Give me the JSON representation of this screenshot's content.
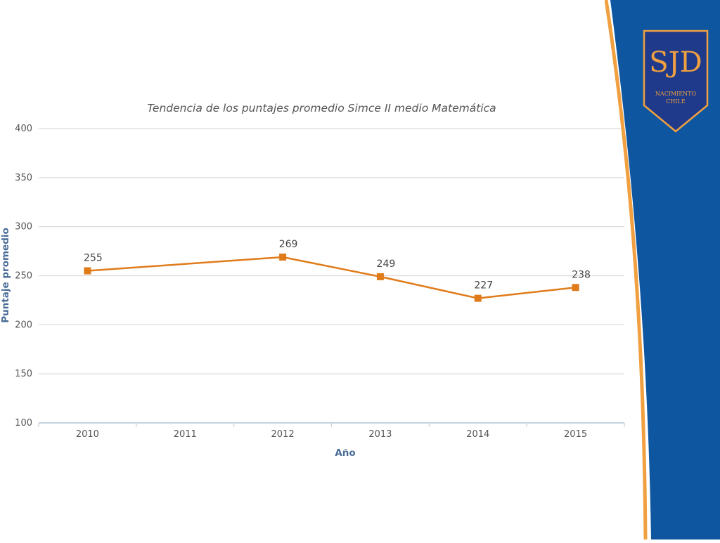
{
  "chart_data": {
    "type": "line",
    "title": "Tendencia de los puntajes promedio Simce II medio Matemática",
    "xlabel": "Año",
    "ylabel": "Puntaje promedio",
    "categories": [
      "2010",
      "2011",
      "2012",
      "2013",
      "2014",
      "2015"
    ],
    "series": [
      {
        "x": [
          "2010",
          "2012",
          "2013",
          "2014",
          "2015"
        ],
        "values": [
          255,
          269,
          249,
          227,
          238
        ],
        "color": "#e07b1a"
      }
    ],
    "ylim": [
      100,
      400
    ],
    "yticks": [
      100,
      150,
      200,
      250,
      300,
      350,
      400
    ],
    "grid": true,
    "data_labels": true
  },
  "logo": {
    "monogram": "SJD",
    "line1": "NACIMIENTO",
    "line2": "CHILE",
    "shield_color": "#1f3a8a",
    "border_color": "#f0a040"
  },
  "colors": {
    "panel_blue": "#0e56a0",
    "panel_orange": "#f0a040",
    "axis_label": "#4a6d97",
    "gridline": "#d9d9d9"
  }
}
